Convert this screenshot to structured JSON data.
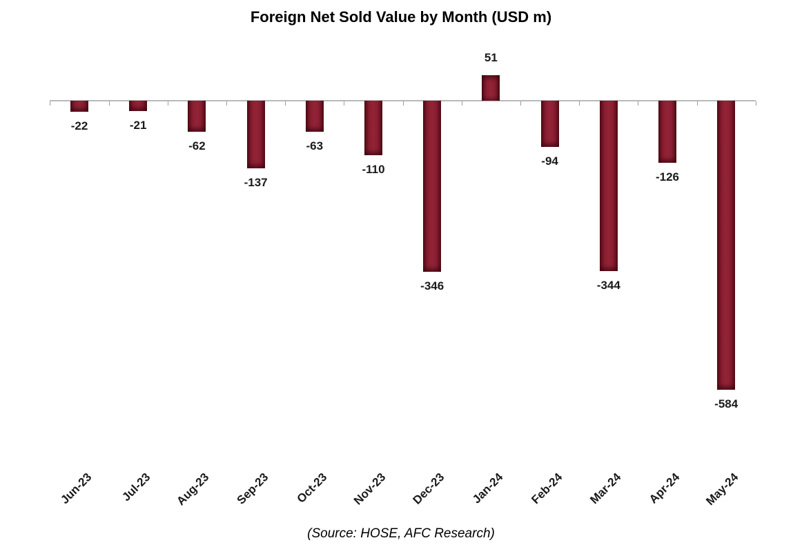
{
  "chart_data": {
    "type": "bar",
    "title": "Foreign Net Sold Value by Month (USD m)",
    "source": "(Source: HOSE, AFC Research)",
    "categories": [
      "Jun-23",
      "Jul-23",
      "Aug-23",
      "Sep-23",
      "Oct-23",
      "Nov-23",
      "Dec-23",
      "Jan-24",
      "Feb-24",
      "Mar-24",
      "Apr-24",
      "May-24"
    ],
    "values": [
      -22,
      -21,
      -62,
      -137,
      -63,
      -110,
      -346,
      51,
      -94,
      -344,
      -126,
      -584
    ],
    "xlabel": "",
    "ylabel": "",
    "ylim": [
      -600,
      100
    ],
    "grid": false,
    "legend_position": "none",
    "bar_color": "#7c1a2a",
    "axis_color": "#b8b8b8"
  }
}
